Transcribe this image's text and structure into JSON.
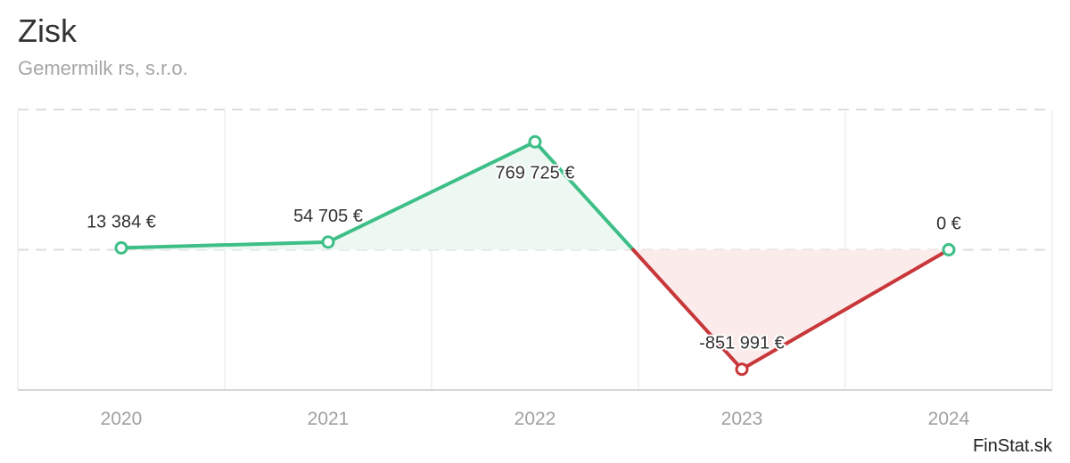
{
  "header": {
    "title": "Zisk",
    "subtitle": "Gemermilk rs, s.r.o.",
    "brand": "FinStat.sk"
  },
  "chart_data": {
    "type": "line",
    "title": "Zisk",
    "subtitle": "Gemermilk rs, s.r.o.",
    "categories": [
      "2020",
      "2021",
      "2022",
      "2023",
      "2024"
    ],
    "values": [
      13384,
      54705,
      769725,
      -851991,
      0
    ],
    "data_labels": [
      "13 384 €",
      "54 705 €",
      "769 725 €",
      "-851 991 €",
      "0 €"
    ],
    "xlabel": "",
    "ylabel": "",
    "ylim": [
      -1000000,
      1000000
    ],
    "grid": true,
    "legend": "none",
    "colors": {
      "positive": "#3dbf87",
      "negative": "#c8373a",
      "positive_fill": "#eef8f2",
      "negative_fill": "#fbeceb",
      "grid": "#e6e6e6",
      "dashed": "#dddddd"
    }
  }
}
